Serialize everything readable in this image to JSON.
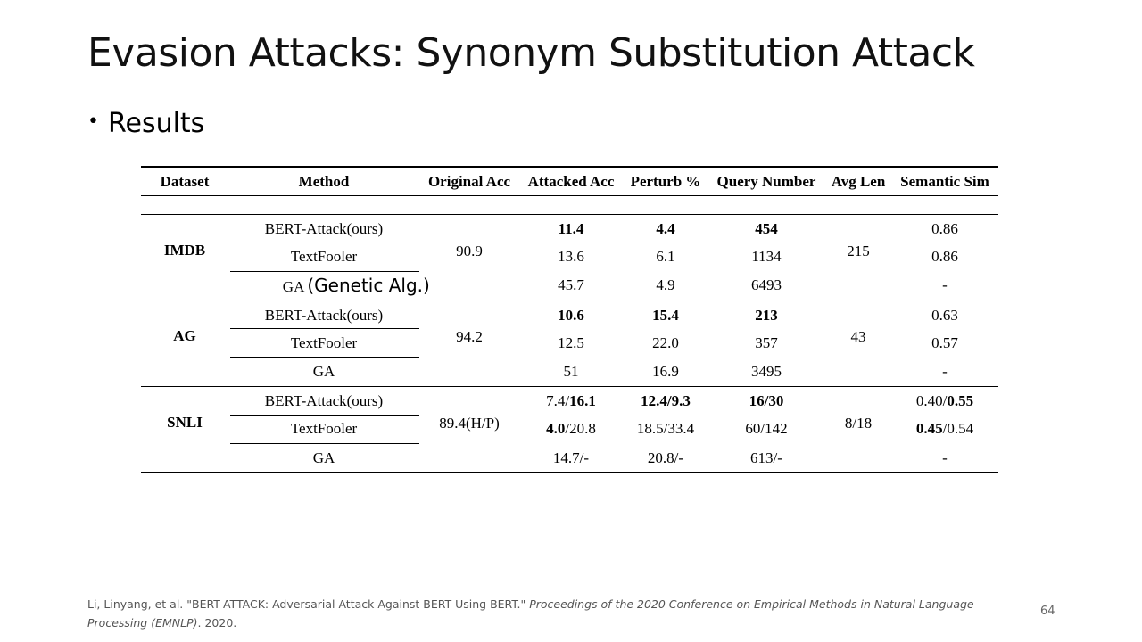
{
  "slide": {
    "title": "Evasion Attacks: Synonym Substitution Attack",
    "bullet_marker": "•",
    "bullet": "Results",
    "page_number": "64"
  },
  "table": {
    "headers": [
      "Dataset",
      "Method",
      "Original Acc",
      "Attacked Acc",
      "Perturb %",
      "Query Number",
      "Avg Len",
      "Semantic Sim"
    ],
    "groups": [
      {
        "dataset": "IMDB",
        "original_acc": "90.9",
        "avg_len": "215",
        "rows": [
          {
            "method": "BERT-Attack(ours)",
            "attacked": [
              "11.4",
              ""
            ],
            "perturb": [
              "4.4",
              ""
            ],
            "query": [
              "454",
              ""
            ],
            "semsim": [
              "",
              "0.86"
            ]
          },
          {
            "method": "TextFooler",
            "attacked": [
              "",
              "13.6"
            ],
            "perturb": [
              "",
              "6.1"
            ],
            "query": [
              "",
              "1134"
            ],
            "semsim": [
              "",
              "0.86"
            ]
          },
          {
            "method": "GA",
            "annotation": "(Genetic Alg.)",
            "attacked": [
              "",
              "45.7"
            ],
            "perturb": [
              "",
              "4.9"
            ],
            "query": [
              "",
              "6493"
            ],
            "semsim": [
              "",
              "-"
            ]
          }
        ]
      },
      {
        "dataset": "AG",
        "original_acc": "94.2",
        "avg_len": "43",
        "rows": [
          {
            "method": "BERT-Attack(ours)",
            "attacked": [
              "10.6",
              ""
            ],
            "perturb": [
              "15.4",
              ""
            ],
            "query": [
              "213",
              ""
            ],
            "semsim": [
              "",
              "0.63"
            ]
          },
          {
            "method": "TextFooler",
            "attacked": [
              "",
              "12.5"
            ],
            "perturb": [
              "",
              "22.0"
            ],
            "query": [
              "",
              "357"
            ],
            "semsim": [
              "",
              "0.57"
            ]
          },
          {
            "method": "GA",
            "attacked": [
              "",
              "51"
            ],
            "perturb": [
              "",
              "16.9"
            ],
            "query": [
              "",
              "3495"
            ],
            "semsim": [
              "",
              "-"
            ]
          }
        ]
      },
      {
        "dataset": "SNLI",
        "original_acc": "89.4(H/P)",
        "avg_len": "8/18",
        "rows": [
          {
            "method": "BERT-Attack(ours)",
            "attacked": [
              "7.4/",
              "16.1"
            ],
            "perturb": [
              "12.4/9.3",
              ""
            ],
            "query": [
              "16/30",
              ""
            ],
            "semsim": [
              "0.40/",
              "0.55"
            ]
          },
          {
            "method": "TextFooler",
            "attacked": [
              "4.0",
              "/20.8"
            ],
            "perturb": [
              "",
              "18.5/33.4"
            ],
            "query": [
              "",
              "60/142"
            ],
            "semsim": [
              "0.45",
              "/0.54"
            ]
          },
          {
            "method": "GA",
            "attacked": [
              "",
              "14.7/-"
            ],
            "perturb": [
              "",
              "20.8/-"
            ],
            "query": [
              "",
              "613/-"
            ],
            "semsim": [
              "",
              "-"
            ]
          }
        ]
      }
    ]
  },
  "citation": {
    "authors": "Li, Linyang, et al. \"BERT-ATTACK: Adversarial Attack Against BERT Using BERT.\" ",
    "venue": "Proceedings of the 2020 Conference on Empirical Methods in Natural Language Processing (EMNLP)",
    "year": ". 2020."
  }
}
